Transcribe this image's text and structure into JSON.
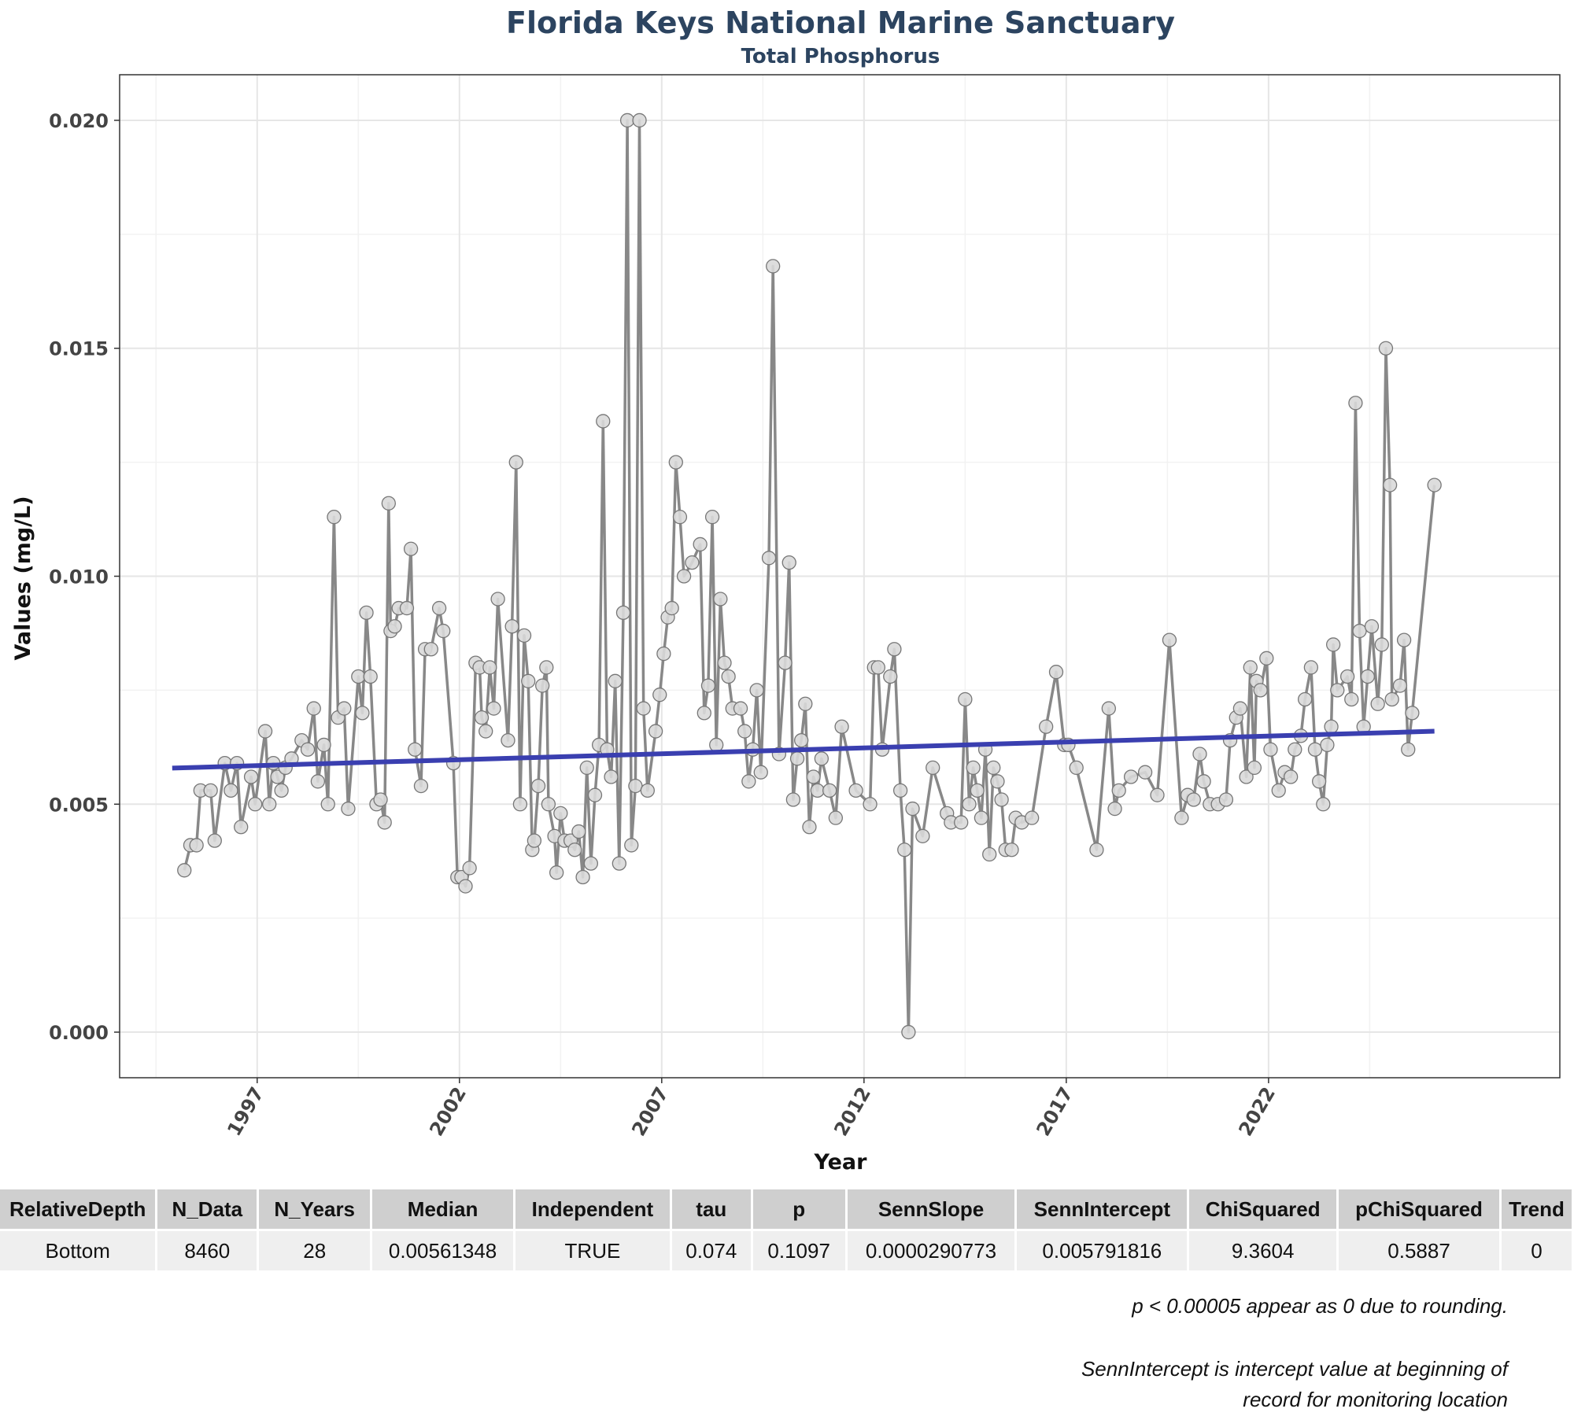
{
  "chart_data": {
    "type": "line",
    "title": "Florida Keys National Marine Sanctuary",
    "subtitle": "Total Phosphorus",
    "xlabel": "Year",
    "ylabel": "Values (mg/L)",
    "xlim": [
      1993.6,
      2024.3
    ],
    "ylim": [
      -0.001,
      0.021
    ],
    "x_ticks": [
      1997,
      2002,
      2007,
      2012,
      2017,
      2022
    ],
    "x_tick_labels": [
      "1997",
      "2002",
      "2007",
      "2012",
      "2017",
      "2022"
    ],
    "y_ticks": [
      0,
      0.005,
      0.01,
      0.015,
      0.02
    ],
    "y_tick_labels": [
      "0.000",
      "0.005",
      "0.010",
      "0.015",
      "0.020"
    ],
    "grid": true,
    "colors": {
      "series_line": "#888888",
      "point_fill": "#d9d9d9",
      "point_stroke": "#777777",
      "trend_line": "#3a3fb0",
      "title": "#2c4460"
    },
    "series": [
      {
        "values": [
          [
            1995.2,
            0.00355
          ],
          [
            1995.35,
            0.0041
          ],
          [
            1995.5,
            0.0041
          ],
          [
            1995.6,
            0.0053
          ],
          [
            1995.85,
            0.0053
          ],
          [
            1995.95,
            0.0042
          ],
          [
            1996.2,
            0.0059
          ],
          [
            1996.35,
            0.0053
          ],
          [
            1996.5,
            0.0059
          ],
          [
            1996.6,
            0.0045
          ],
          [
            1996.85,
            0.0056
          ],
          [
            1996.95,
            0.005
          ],
          [
            1997.2,
            0.0066
          ],
          [
            1997.3,
            0.005
          ],
          [
            1997.4,
            0.0059
          ],
          [
            1997.5,
            0.0056
          ],
          [
            1997.6,
            0.0053
          ],
          [
            1997.7,
            0.0058
          ],
          [
            1997.85,
            0.006
          ],
          [
            1998.1,
            0.0064
          ],
          [
            1998.25,
            0.0062
          ],
          [
            1998.4,
            0.0071
          ],
          [
            1998.5,
            0.0055
          ],
          [
            1998.65,
            0.0063
          ],
          [
            1998.75,
            0.005
          ],
          [
            1998.9,
            0.0113
          ],
          [
            1999.0,
            0.0069
          ],
          [
            1999.15,
            0.0071
          ],
          [
            1999.25,
            0.0049
          ],
          [
            1999.5,
            0.0078
          ],
          [
            1999.6,
            0.007
          ],
          [
            1999.7,
            0.0092
          ],
          [
            1999.8,
            0.0078
          ],
          [
            1999.95,
            0.005
          ],
          [
            2000.05,
            0.0051
          ],
          [
            2000.15,
            0.0046
          ],
          [
            2000.25,
            0.0116
          ],
          [
            2000.3,
            0.0088
          ],
          [
            2000.4,
            0.0089
          ],
          [
            2000.5,
            0.0093
          ],
          [
            2000.7,
            0.0093
          ],
          [
            2000.8,
            0.0106
          ],
          [
            2000.9,
            0.0062
          ],
          [
            2001.05,
            0.0054
          ],
          [
            2001.15,
            0.0084
          ],
          [
            2001.3,
            0.0084
          ],
          [
            2001.5,
            0.0093
          ],
          [
            2001.6,
            0.0088
          ],
          [
            2001.85,
            0.0059
          ],
          [
            2001.95,
            0.0034
          ],
          [
            2002.05,
            0.0034
          ],
          [
            2002.15,
            0.0032
          ],
          [
            2002.25,
            0.0036
          ],
          [
            2002.4,
            0.0081
          ],
          [
            2002.5,
            0.008
          ],
          [
            2002.55,
            0.0069
          ],
          [
            2002.65,
            0.0066
          ],
          [
            2002.75,
            0.008
          ],
          [
            2002.85,
            0.0071
          ],
          [
            2002.95,
            0.0095
          ],
          [
            2003.2,
            0.0064
          ],
          [
            2003.3,
            0.0089
          ],
          [
            2003.4,
            0.0125
          ],
          [
            2003.5,
            0.005
          ],
          [
            2003.6,
            0.0087
          ],
          [
            2003.7,
            0.0077
          ],
          [
            2003.8,
            0.004
          ],
          [
            2003.85,
            0.0042
          ],
          [
            2003.95,
            0.0054
          ],
          [
            2004.05,
            0.0076
          ],
          [
            2004.15,
            0.008
          ],
          [
            2004.2,
            0.005
          ],
          [
            2004.35,
            0.0043
          ],
          [
            2004.4,
            0.0035
          ],
          [
            2004.5,
            0.0048
          ],
          [
            2004.6,
            0.0042
          ],
          [
            2004.75,
            0.0042
          ],
          [
            2004.85,
            0.004
          ],
          [
            2004.95,
            0.0044
          ],
          [
            2005.05,
            0.0034
          ],
          [
            2005.15,
            0.0058
          ],
          [
            2005.25,
            0.0037
          ],
          [
            2005.35,
            0.0052
          ],
          [
            2005.45,
            0.0063
          ],
          [
            2005.55,
            0.0134
          ],
          [
            2005.65,
            0.0062
          ],
          [
            2005.75,
            0.0056
          ],
          [
            2005.85,
            0.0077
          ],
          [
            2005.95,
            0.0037
          ],
          [
            2006.05,
            0.0092
          ],
          [
            2006.15,
            0.02
          ],
          [
            2006.25,
            0.0041
          ],
          [
            2006.35,
            0.0054
          ],
          [
            2006.45,
            0.02
          ],
          [
            2006.55,
            0.0071
          ],
          [
            2006.65,
            0.0053
          ],
          [
            2006.85,
            0.0066
          ],
          [
            2006.95,
            0.0074
          ],
          [
            2007.05,
            0.0083
          ],
          [
            2007.15,
            0.0091
          ],
          [
            2007.25,
            0.0093
          ],
          [
            2007.35,
            0.0125
          ],
          [
            2007.45,
            0.0113
          ],
          [
            2007.55,
            0.01
          ],
          [
            2007.75,
            0.0103
          ],
          [
            2007.95,
            0.0107
          ],
          [
            2008.05,
            0.007
          ],
          [
            2008.15,
            0.0076
          ],
          [
            2008.25,
            0.0113
          ],
          [
            2008.35,
            0.0063
          ],
          [
            2008.45,
            0.0095
          ],
          [
            2008.55,
            0.0081
          ],
          [
            2008.65,
            0.0078
          ],
          [
            2008.75,
            0.0071
          ],
          [
            2008.95,
            0.0071
          ],
          [
            2009.05,
            0.0066
          ],
          [
            2009.15,
            0.0055
          ],
          [
            2009.25,
            0.0062
          ],
          [
            2009.35,
            0.0075
          ],
          [
            2009.45,
            0.0057
          ],
          [
            2009.65,
            0.0104
          ],
          [
            2009.75,
            0.0168
          ],
          [
            2009.9,
            0.0061
          ],
          [
            2010.05,
            0.0081
          ],
          [
            2010.15,
            0.0103
          ],
          [
            2010.25,
            0.0051
          ],
          [
            2010.35,
            0.006
          ],
          [
            2010.45,
            0.0064
          ],
          [
            2010.55,
            0.0072
          ],
          [
            2010.65,
            0.0045
          ],
          [
            2010.75,
            0.0056
          ],
          [
            2010.85,
            0.0053
          ],
          [
            2010.95,
            0.006
          ],
          [
            2011.15,
            0.0053
          ],
          [
            2011.3,
            0.0047
          ],
          [
            2011.45,
            0.0067
          ],
          [
            2011.8,
            0.0053
          ],
          [
            2012.15,
            0.005
          ],
          [
            2012.25,
            0.008
          ],
          [
            2012.35,
            0.008
          ],
          [
            2012.45,
            0.0062
          ],
          [
            2012.65,
            0.0078
          ],
          [
            2012.75,
            0.0084
          ],
          [
            2012.9,
            0.0053
          ],
          [
            2013.0,
            0.004
          ],
          [
            2013.1,
            0.0
          ],
          [
            2013.2,
            0.0049
          ],
          [
            2013.45,
            0.0043
          ],
          [
            2013.7,
            0.0058
          ],
          [
            2014.05,
            0.0048
          ],
          [
            2014.15,
            0.0046
          ],
          [
            2014.4,
            0.0046
          ],
          [
            2014.5,
            0.0073
          ],
          [
            2014.6,
            0.005
          ],
          [
            2014.7,
            0.0058
          ],
          [
            2014.8,
            0.0053
          ],
          [
            2014.9,
            0.0047
          ],
          [
            2015.0,
            0.0062
          ],
          [
            2015.1,
            0.0039
          ],
          [
            2015.2,
            0.0058
          ],
          [
            2015.3,
            0.0055
          ],
          [
            2015.4,
            0.0051
          ],
          [
            2015.5,
            0.004
          ],
          [
            2015.65,
            0.004
          ],
          [
            2015.75,
            0.0047
          ],
          [
            2015.9,
            0.0046
          ],
          [
            2016.15,
            0.0047
          ],
          [
            2016.5,
            0.0067
          ],
          [
            2016.75,
            0.0079
          ],
          [
            2016.95,
            0.0063
          ],
          [
            2017.05,
            0.0063
          ],
          [
            2017.25,
            0.0058
          ],
          [
            2017.75,
            0.004
          ],
          [
            2018.05,
            0.0071
          ],
          [
            2018.2,
            0.0049
          ],
          [
            2018.3,
            0.0053
          ],
          [
            2018.6,
            0.0056
          ],
          [
            2018.95,
            0.0057
          ],
          [
            2019.25,
            0.0052
          ],
          [
            2019.55,
            0.0086
          ],
          [
            2019.85,
            0.0047
          ],
          [
            2020.0,
            0.0052
          ],
          [
            2020.15,
            0.0051
          ],
          [
            2020.3,
            0.0061
          ],
          [
            2020.4,
            0.0055
          ],
          [
            2020.55,
            0.005
          ],
          [
            2020.75,
            0.005
          ],
          [
            2020.95,
            0.0051
          ],
          [
            2021.05,
            0.0064
          ],
          [
            2021.2,
            0.0069
          ],
          [
            2021.3,
            0.0071
          ],
          [
            2021.45,
            0.0056
          ],
          [
            2021.55,
            0.008
          ],
          [
            2021.65,
            0.0058
          ],
          [
            2021.7,
            0.0077
          ],
          [
            2021.8,
            0.0075
          ],
          [
            2021.95,
            0.0082
          ],
          [
            2022.05,
            0.0062
          ],
          [
            2022.25,
            0.0053
          ],
          [
            2022.4,
            0.0057
          ],
          [
            2022.55,
            0.0056
          ],
          [
            2022.65,
            0.0062
          ],
          [
            2022.8,
            0.0065
          ],
          [
            2022.9,
            0.0073
          ],
          [
            2023.05,
            0.008
          ],
          [
            2023.15,
            0.0062
          ],
          [
            2023.25,
            0.0055
          ],
          [
            2023.35,
            0.005
          ],
          [
            2023.45,
            0.0063
          ],
          [
            2023.55,
            0.0067
          ],
          [
            2023.6,
            0.0085
          ],
          [
            2023.7,
            0.0075
          ],
          [
            2023.95,
            0.0078
          ],
          [
            2024.05,
            0.0073
          ],
          [
            2024.15,
            0.0138
          ],
          [
            2024.25,
            0.0088
          ],
          [
            2024.35,
            0.0067
          ],
          [
            2024.45,
            0.0078
          ],
          [
            2024.55,
            0.0089
          ],
          [
            2024.7,
            0.0072
          ],
          [
            2024.8,
            0.0085
          ],
          [
            2024.9,
            0.015
          ],
          [
            2025.0,
            0.012
          ],
          [
            2025.05,
            0.0073
          ],
          [
            2025.25,
            0.0076
          ],
          [
            2025.35,
            0.0086
          ],
          [
            2025.45,
            0.0062
          ],
          [
            2025.55,
            0.007
          ],
          [
            2026.1,
            0.012
          ]
        ]
      }
    ],
    "trend_line": {
      "x": [
        1994.9,
        2026.1
      ],
      "y": [
        0.005791816,
        0.0066
      ]
    }
  },
  "table": {
    "headers": [
      "RelativeDepth",
      "N_Data",
      "N_Years",
      "Median",
      "Independent",
      "tau",
      "p",
      "SennSlope",
      "SennIntercept",
      "ChiSquared",
      "pChiSquared",
      "Trend"
    ],
    "rows": [
      [
        "Bottom",
        "8460",
        "28",
        "0.00561348",
        "TRUE",
        "0.074",
        "0.1097",
        "0.0000290773",
        "0.005791816",
        "9.3604",
        "0.5887",
        "0"
      ]
    ]
  },
  "notes": {
    "rounding": "p < 0.00005 appear as 0 due to rounding.",
    "intercept_line1": "SennIntercept is intercept value at beginning of",
    "intercept_line2": "record for monitoring location"
  }
}
